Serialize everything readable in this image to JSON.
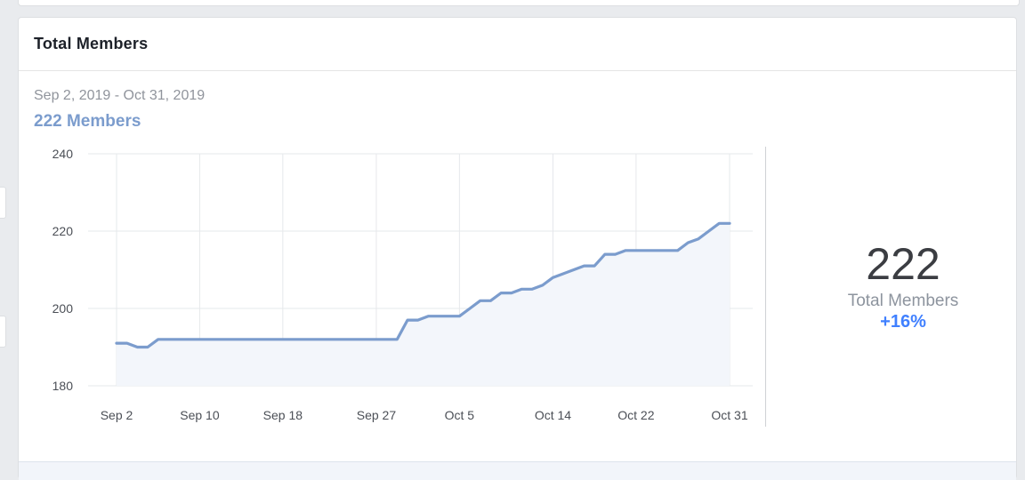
{
  "card": {
    "title": "Total Members",
    "date_range": "Sep 2, 2019 - Oct 31, 2019",
    "members_label": "222 Members"
  },
  "summary": {
    "value": "222",
    "label": "Total Members",
    "change": "+16%"
  },
  "colors": {
    "line": "#7b9ccd",
    "fill": "#f3f6fb",
    "grid": "#e6e8eb",
    "change": "#4080ff"
  },
  "chart_data": {
    "type": "area",
    "title": "",
    "xlabel": "",
    "ylabel": "",
    "ylim": [
      180,
      240
    ],
    "yticks": [
      180,
      200,
      220,
      240
    ],
    "xticks": [
      {
        "day": 0,
        "label": "Sep 2"
      },
      {
        "day": 8,
        "label": "Sep 10"
      },
      {
        "day": 16,
        "label": "Sep 18"
      },
      {
        "day": 25,
        "label": "Sep 27"
      },
      {
        "day": 33,
        "label": "Oct 5"
      },
      {
        "day": 42,
        "label": "Oct 14"
      },
      {
        "day": 50,
        "label": "Oct 22"
      },
      {
        "day": 59,
        "label": "Oct 31"
      }
    ],
    "grid": true,
    "legend": false,
    "series": [
      {
        "x": [
          0,
          1,
          2,
          3,
          4,
          5,
          6,
          7,
          8,
          9,
          10,
          11,
          12,
          13,
          14,
          15,
          16,
          17,
          18,
          19,
          20,
          21,
          22,
          23,
          24,
          25,
          26,
          27,
          28,
          29,
          30,
          31,
          32,
          33,
          34,
          35,
          36,
          37,
          38,
          39,
          40,
          41,
          42,
          43,
          44,
          45,
          46,
          47,
          48,
          49,
          50,
          51,
          52,
          53,
          54,
          55,
          56,
          57,
          58,
          59
        ],
        "y": [
          191,
          191,
          190,
          190,
          192,
          192,
          192,
          192,
          192,
          192,
          192,
          192,
          192,
          192,
          192,
          192,
          192,
          192,
          192,
          192,
          192,
          192,
          192,
          192,
          192,
          192,
          192,
          192,
          197,
          197,
          198,
          198,
          198,
          198,
          200,
          202,
          202,
          204,
          204,
          205,
          205,
          206,
          208,
          209,
          210,
          211,
          211,
          214,
          214,
          215,
          215,
          215,
          215,
          215,
          215,
          217,
          218,
          220,
          222,
          222
        ]
      }
    ]
  }
}
